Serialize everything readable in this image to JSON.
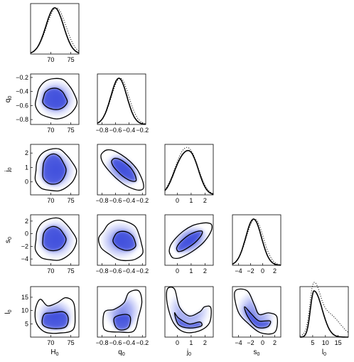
{
  "chart_data": {
    "type": "corner",
    "parameters": [
      {
        "name": "H",
        "sub": "0",
        "range": [
          65,
          77
        ],
        "ticks": [
          70,
          75
        ],
        "mean": 71.0,
        "sd": 2.2,
        "dotted_mean": 71.4
      },
      {
        "name": "q",
        "sub": "0",
        "range": [
          -0.87,
          -0.15
        ],
        "ticks": [
          -0.8,
          -0.6,
          -0.4,
          -0.2
        ],
        "mean": -0.55,
        "sd": 0.12,
        "dotted_mean": -0.53
      },
      {
        "name": "j",
        "sub": "0",
        "range": [
          -0.9,
          2.6
        ],
        "ticks": [
          0,
          1,
          2
        ],
        "mean": 0.8,
        "sd": 0.65,
        "dotted_mean": 0.8
      },
      {
        "name": "s",
        "sub": "0",
        "range": [
          -5,
          3
        ],
        "ticks": [
          -4,
          -2,
          0,
          2
        ],
        "mean": -1.5,
        "sd": 1.3,
        "dotted_mean": -1.3
      },
      {
        "name": "l",
        "sub": "0",
        "range": [
          0,
          19
        ],
        "ticks": [
          5,
          10,
          15
        ],
        "mean": 6,
        "sd": 2.5,
        "dotted_mean": 6
      }
    ],
    "row_y_ticks": {
      "q0": [
        -0.2,
        -0.4,
        -0.6,
        -0.8
      ],
      "j0": [
        2,
        1,
        0
      ],
      "s0": [
        2,
        0,
        -2,
        -4
      ],
      "l0": [
        15,
        10,
        5
      ]
    },
    "correlations": [
      {
        "pair": [
          "q0",
          "H0"
        ],
        "rho": 0.1
      },
      {
        "pair": [
          "j0",
          "H0"
        ],
        "rho": 0.05
      },
      {
        "pair": [
          "j0",
          "q0"
        ],
        "rho": 0.88
      },
      {
        "pair": [
          "s0",
          "H0"
        ],
        "rho": 0.05
      },
      {
        "pair": [
          "s0",
          "q0"
        ],
        "rho": 0.45
      },
      {
        "pair": [
          "s0",
          "j0"
        ],
        "rho": 0.8
      },
      {
        "pair": [
          "l0",
          "H0"
        ],
        "rho": 0.0
      },
      {
        "pair": [
          "l0",
          "q0"
        ],
        "rho": 0.3
      },
      {
        "pair": [
          "l0",
          "j0"
        ],
        "rho": -0.6
      },
      {
        "pair": [
          "l0",
          "s0"
        ],
        "rho": -0.65
      }
    ],
    "legend": "none",
    "grid": false,
    "colors": {
      "density": "#3a4ce0",
      "contour": "#000000",
      "background": "#ffffff"
    }
  }
}
